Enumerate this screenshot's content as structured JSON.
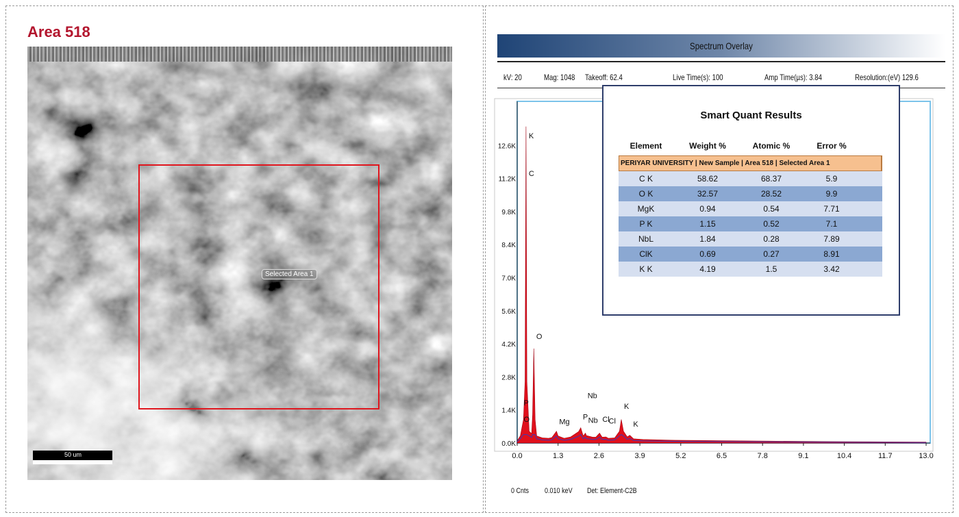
{
  "sem": {
    "title": "Area 518",
    "selection_label": "Selected Area 1",
    "scale_label": "50 um"
  },
  "spectrum": {
    "header_title": "Spectrum Overlay",
    "stats": [
      "kV: 20",
      "Mag: 1048",
      "Takeoff: 62.4",
      "Live Time(s): 100",
      "Amp Time(µs): 3.84",
      "Resolution:(eV) 129.6"
    ],
    "footer": [
      "0 Cnts",
      "0.010 keV",
      "Det: Element-C2B"
    ]
  },
  "smart_quant": {
    "title": "Smart Quant Results",
    "headers": [
      "Element",
      "Weight %",
      "Atomic %",
      "Error %"
    ],
    "banner": "PERIYAR UNIVERSITY | New Sample | Area 518 | Selected Area 1",
    "rows": [
      [
        "C K",
        "58.62",
        "68.37",
        "5.9"
      ],
      [
        "O K",
        "32.57",
        "28.52",
        "9.9"
      ],
      [
        "MgK",
        "0.94",
        "0.54",
        "7.71"
      ],
      [
        "P K",
        "1.15",
        "0.52",
        "7.1"
      ],
      [
        "NbL",
        "1.84",
        "0.28",
        "7.89"
      ],
      [
        "ClK",
        "0.69",
        "0.27",
        "8.91"
      ],
      [
        "K K",
        "4.19",
        "1.5",
        "3.42"
      ]
    ]
  },
  "colors": {
    "spectrum_fill": "#e0101c",
    "overlay_line": "#3a3ab8",
    "plot_frame": "#7cc3ea",
    "selection_box": "#e0161e"
  },
  "chart_data": {
    "type": "area",
    "title": "Spectrum Overlay",
    "xlabel": "",
    "ylabel": "",
    "xlim": [
      0,
      13.0
    ],
    "ylim": [
      0,
      14000
    ],
    "x_ticks": [
      "0.0",
      "1.3",
      "2.6",
      "3.9",
      "5.2",
      "6.5",
      "7.8",
      "9.1",
      "10.4",
      "11.7",
      "13.0"
    ],
    "y_ticks": [
      "0.0K",
      "1.4K",
      "2.8K",
      "4.2K",
      "5.6K",
      "7.0K",
      "8.4K",
      "9.8K",
      "11.2K",
      "12.6K"
    ],
    "series": [
      {
        "values": [
          [
            0.0,
            100
          ],
          [
            0.1,
            300
          ],
          [
            0.2,
            1000
          ],
          [
            0.25,
            2600
          ],
          [
            0.28,
            13400
          ],
          [
            0.31,
            2600
          ],
          [
            0.38,
            500
          ],
          [
            0.46,
            400
          ],
          [
            0.49,
            1200
          ],
          [
            0.53,
            4000
          ],
          [
            0.57,
            1000
          ],
          [
            0.62,
            300
          ],
          [
            0.8,
            220
          ],
          [
            1.0,
            200
          ],
          [
            1.1,
            230
          ],
          [
            1.25,
            500
          ],
          [
            1.3,
            300
          ],
          [
            1.5,
            200
          ],
          [
            1.7,
            260
          ],
          [
            1.95,
            480
          ],
          [
            2.02,
            650
          ],
          [
            2.1,
            300
          ],
          [
            2.17,
            420
          ],
          [
            2.2,
            320
          ],
          [
            2.4,
            250
          ],
          [
            2.5,
            250
          ],
          [
            2.62,
            420
          ],
          [
            2.7,
            250
          ],
          [
            2.82,
            260
          ],
          [
            2.9,
            200
          ],
          [
            3.1,
            220
          ],
          [
            3.25,
            500
          ],
          [
            3.31,
            1000
          ],
          [
            3.38,
            500
          ],
          [
            3.5,
            260
          ],
          [
            3.58,
            330
          ],
          [
            3.7,
            180
          ],
          [
            4.0,
            150
          ],
          [
            5.0,
            120
          ],
          [
            6.5,
            100
          ],
          [
            8.0,
            80
          ],
          [
            10.0,
            60
          ],
          [
            11.7,
            50
          ],
          [
            13.0,
            40
          ]
        ]
      }
    ],
    "annotations": [
      {
        "label": "K",
        "x": 0.28,
        "y": 12900
      },
      {
        "label": "C",
        "x": 0.28,
        "y": 11300
      },
      {
        "label": "O",
        "x": 0.52,
        "y": 4400
      },
      {
        "label": "P",
        "x": 0.12,
        "y": 1600
      },
      {
        "label": "O",
        "x": 0.12,
        "y": 900
      },
      {
        "label": "Mg",
        "x": 1.25,
        "y": 800
      },
      {
        "label": "P",
        "x": 2.0,
        "y": 1000
      },
      {
        "label": "Nb",
        "x": 2.15,
        "y": 1900
      },
      {
        "label": "Nb",
        "x": 2.17,
        "y": 850
      },
      {
        "label": "Cl",
        "x": 2.62,
        "y": 900
      },
      {
        "label": "Cl",
        "x": 2.82,
        "y": 820
      },
      {
        "label": "K",
        "x": 3.31,
        "y": 1450
      },
      {
        "label": "K",
        "x": 3.6,
        "y": 700
      }
    ],
    "grid": false
  }
}
